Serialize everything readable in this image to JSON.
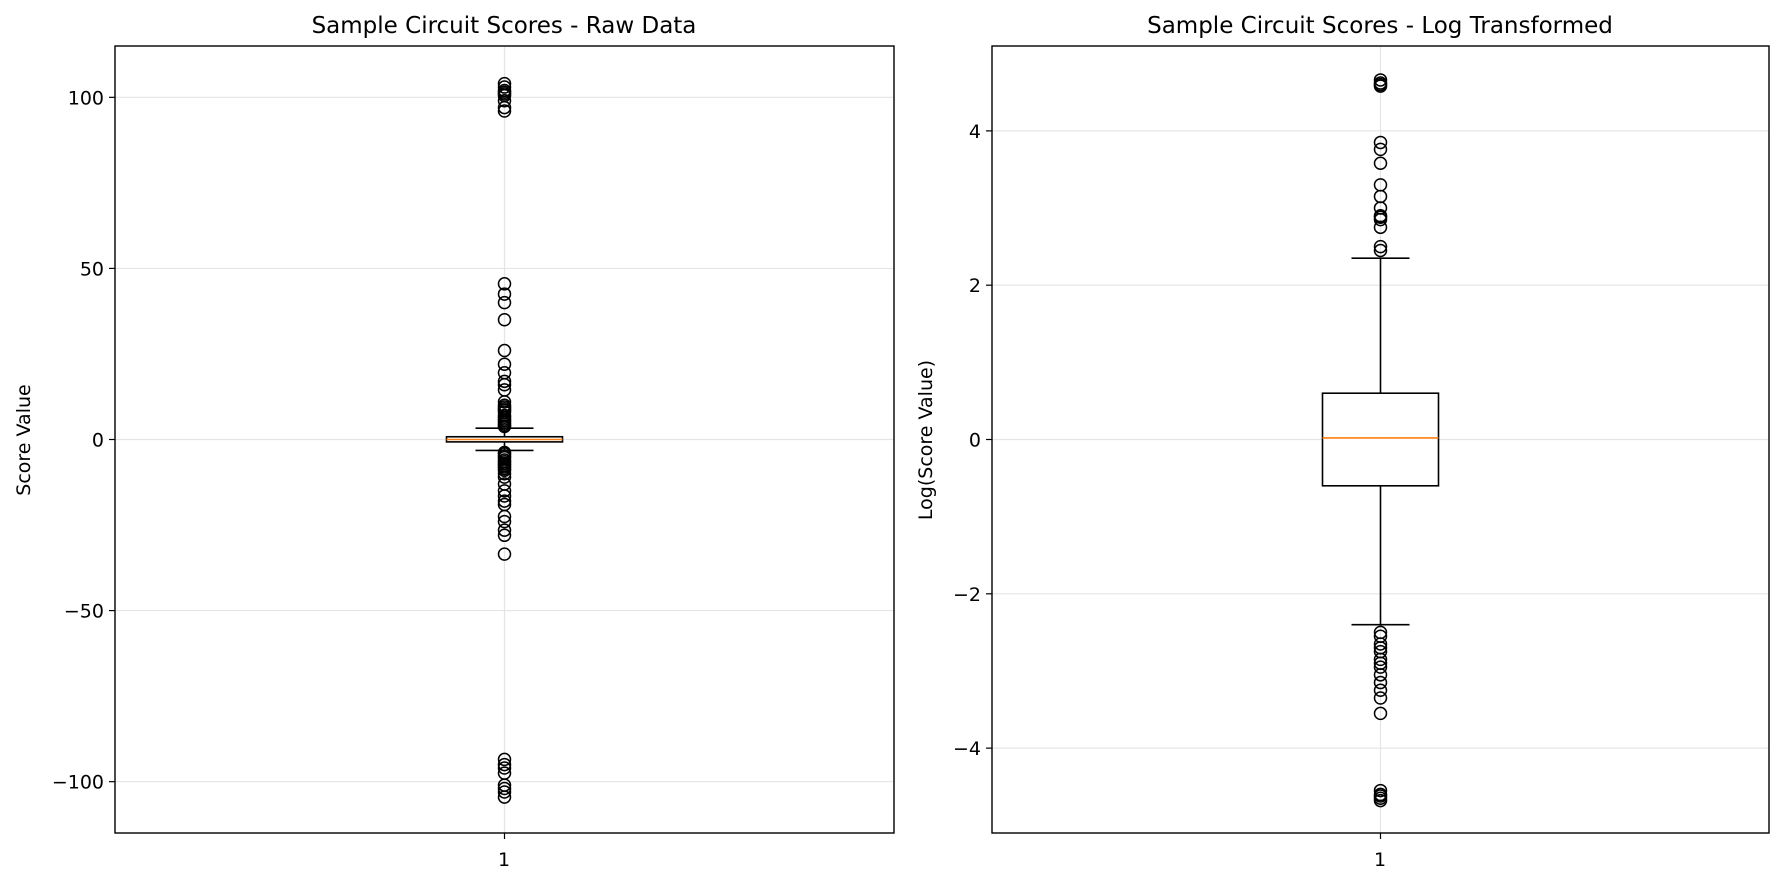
{
  "chart_data": [
    {
      "type": "box",
      "title": "Sample Circuit Scores - Raw Data",
      "xlabel": "",
      "ylabel": "Score Value",
      "categories": [
        "1"
      ],
      "ylim": [
        -115,
        115
      ],
      "yticks": [
        100,
        50,
        0,
        -50,
        -100
      ],
      "ytick_labels": [
        "100",
        "50",
        "0",
        "−50",
        "−100"
      ],
      "grid": true,
      "box": {
        "whisker_low": -3.2,
        "q1": -0.7,
        "median": 0.0,
        "q3": 0.8,
        "whisker_high": 3.3
      },
      "outliers": [
        104,
        103,
        102,
        101.5,
        101,
        100.5,
        99,
        97,
        96,
        45.5,
        42.5,
        40,
        35,
        26,
        22,
        19.5,
        17,
        16,
        14.5,
        11,
        10,
        9.5,
        9,
        8.5,
        8,
        7,
        6.5,
        6,
        5.5,
        5,
        4.5,
        4,
        3.8,
        -3.8,
        -4.2,
        -4.8,
        -5.3,
        -6,
        -6.5,
        -7,
        -7.5,
        -8,
        -8.5,
        -9,
        -10,
        -11,
        -13,
        -15,
        -16.5,
        -18,
        -19,
        -22.5,
        -24,
        -26.5,
        -28,
        -33.5,
        -93.5,
        -95,
        -96,
        -97.5,
        -101,
        -102,
        -103,
        -104.5
      ],
      "colors": {
        "box": "#000000",
        "median": "#ff7f0e",
        "fill": "#ffffff",
        "grid": "#e5e5e5"
      }
    },
    {
      "type": "box",
      "title": "Sample Circuit Scores - Log Transformed",
      "xlabel": "",
      "ylabel": "Log(Score Value)",
      "categories": [
        "1"
      ],
      "ylim": [
        -5.1,
        5.1
      ],
      "yticks": [
        4,
        2,
        0,
        -2,
        -4
      ],
      "ytick_labels": [
        "4",
        "2",
        "0",
        "−2",
        "−4"
      ],
      "grid": true,
      "box": {
        "whisker_low": -2.4,
        "q1": -0.6,
        "median": 0.02,
        "q3": 0.6,
        "whisker_high": 2.35
      },
      "outliers": [
        4.66,
        4.62,
        4.6,
        4.58,
        3.85,
        3.76,
        3.58,
        3.3,
        3.15,
        3.0,
        2.9,
        2.88,
        2.85,
        2.75,
        2.5,
        2.45,
        -2.5,
        -2.55,
        -2.65,
        -2.7,
        -2.75,
        -2.85,
        -2.9,
        -2.95,
        -3.05,
        -3.15,
        -3.25,
        -3.35,
        -3.55,
        -4.55,
        -4.6,
        -4.62,
        -4.65,
        -4.68
      ],
      "colors": {
        "box": "#000000",
        "median": "#ff7f0e",
        "fill": "#ffffff",
        "grid": "#e5e5e5"
      }
    }
  ]
}
